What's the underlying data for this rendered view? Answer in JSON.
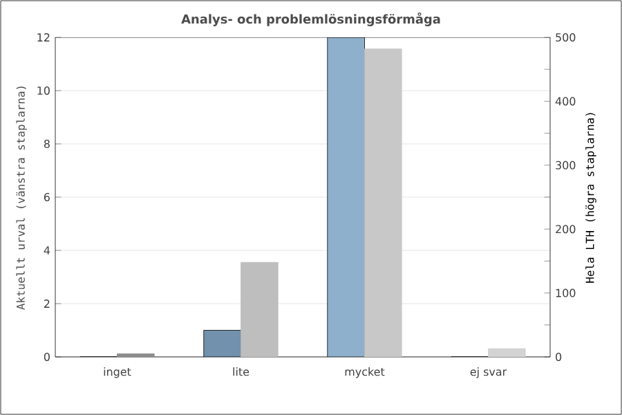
{
  "chart_data": {
    "type": "bar",
    "title": "Analys- och problemlösningsförmåga",
    "categories": [
      "inget",
      "lite",
      "mycket",
      "ej svar"
    ],
    "ylabel": "Aktuellt urval (vänstra staplarna)",
    "y2label": "Hela LTH (högra staplarna)",
    "ylim": [
      0,
      12
    ],
    "yticks": [
      0,
      2,
      4,
      6,
      8,
      10,
      12
    ],
    "y2lim": [
      0,
      500
    ],
    "y2ticks": [
      0,
      {
        "value": 50,
        "label": null
      },
      100,
      {
        "value": 150,
        "label": null
      },
      200,
      {
        "value": 250,
        "label": null
      },
      300,
      {
        "value": 350,
        "label": null
      },
      400,
      {
        "value": 450,
        "label": null
      },
      500
    ],
    "grid": "y",
    "series": [
      {
        "axis": "y",
        "values": [
          0,
          1,
          12,
          0
        ],
        "colors": [
          "#7191ad",
          "#7191ad",
          "#8fb0cc",
          "#8fb0cc"
        ]
      },
      {
        "axis": "y2",
        "values": [
          5,
          148,
          482,
          13
        ],
        "colors": [
          "#8c8c8c",
          "#bebebe",
          "#c8c8c8",
          "#d3d3d3"
        ]
      }
    ]
  }
}
